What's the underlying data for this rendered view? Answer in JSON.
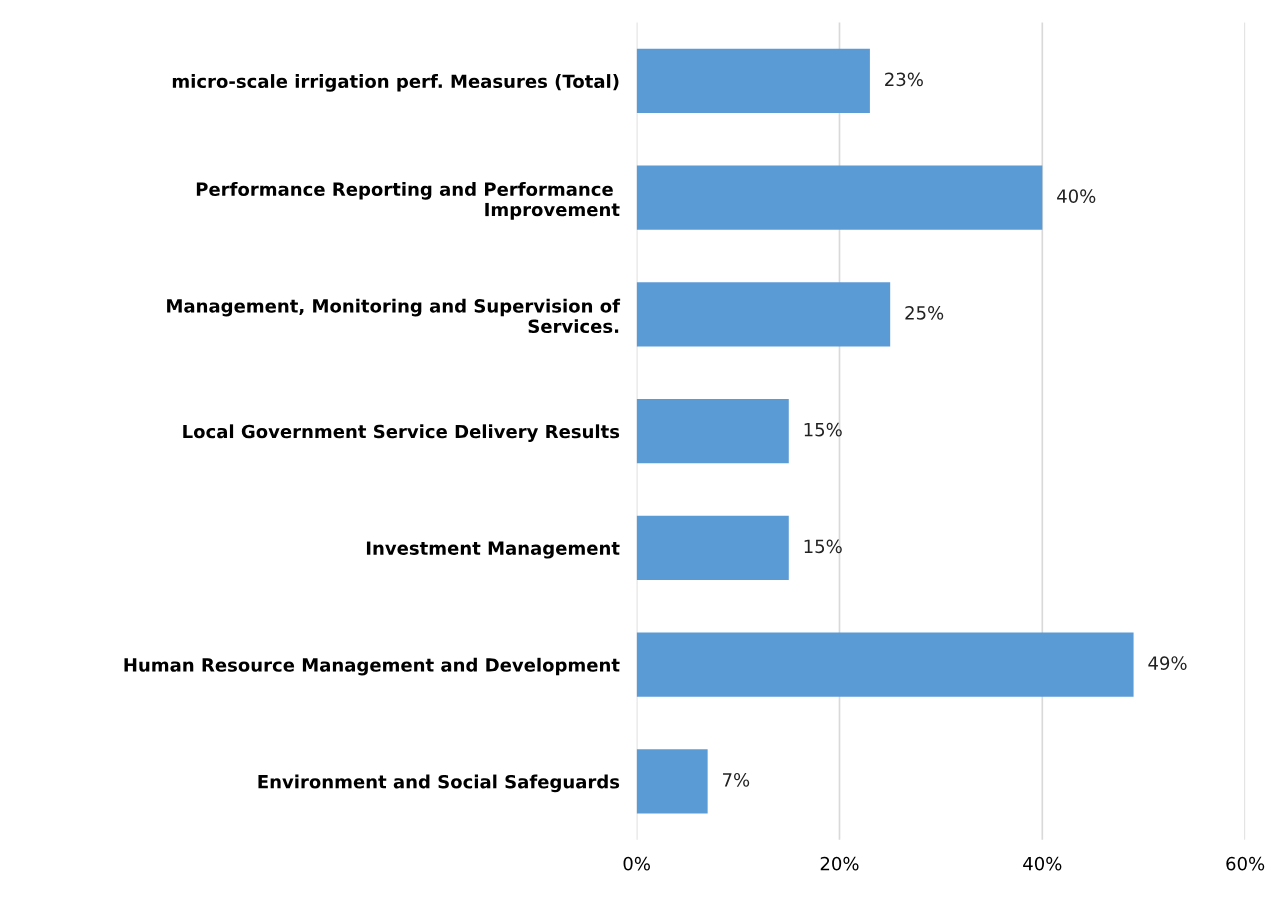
{
  "chart_data": {
    "type": "bar",
    "orientation": "horizontal",
    "categories": [
      "micro-scale irrigation perf. Measures (Total)",
      "Performance Reporting and Performance \nImprovement",
      "Management, Monitoring and Supervision of\nServices.",
      "Local Government Service Delivery Results",
      "Investment Management",
      "Human Resource Management and Development",
      "Environment and Social Safeguards"
    ],
    "values": [
      23,
      40,
      25,
      15,
      15,
      49,
      7
    ],
    "value_labels": [
      "23%",
      "40%",
      "25%",
      "15%",
      "15%",
      "49%",
      "7%"
    ],
    "color": "#5b9bd5",
    "xlim": [
      0,
      60
    ],
    "xticks": [
      {
        "value": 0,
        "label": "0%"
      },
      {
        "value": 20,
        "label": "20%"
      },
      {
        "value": 40,
        "label": "40%"
      },
      {
        "value": 60,
        "label": "60%"
      }
    ],
    "grid": "x"
  }
}
